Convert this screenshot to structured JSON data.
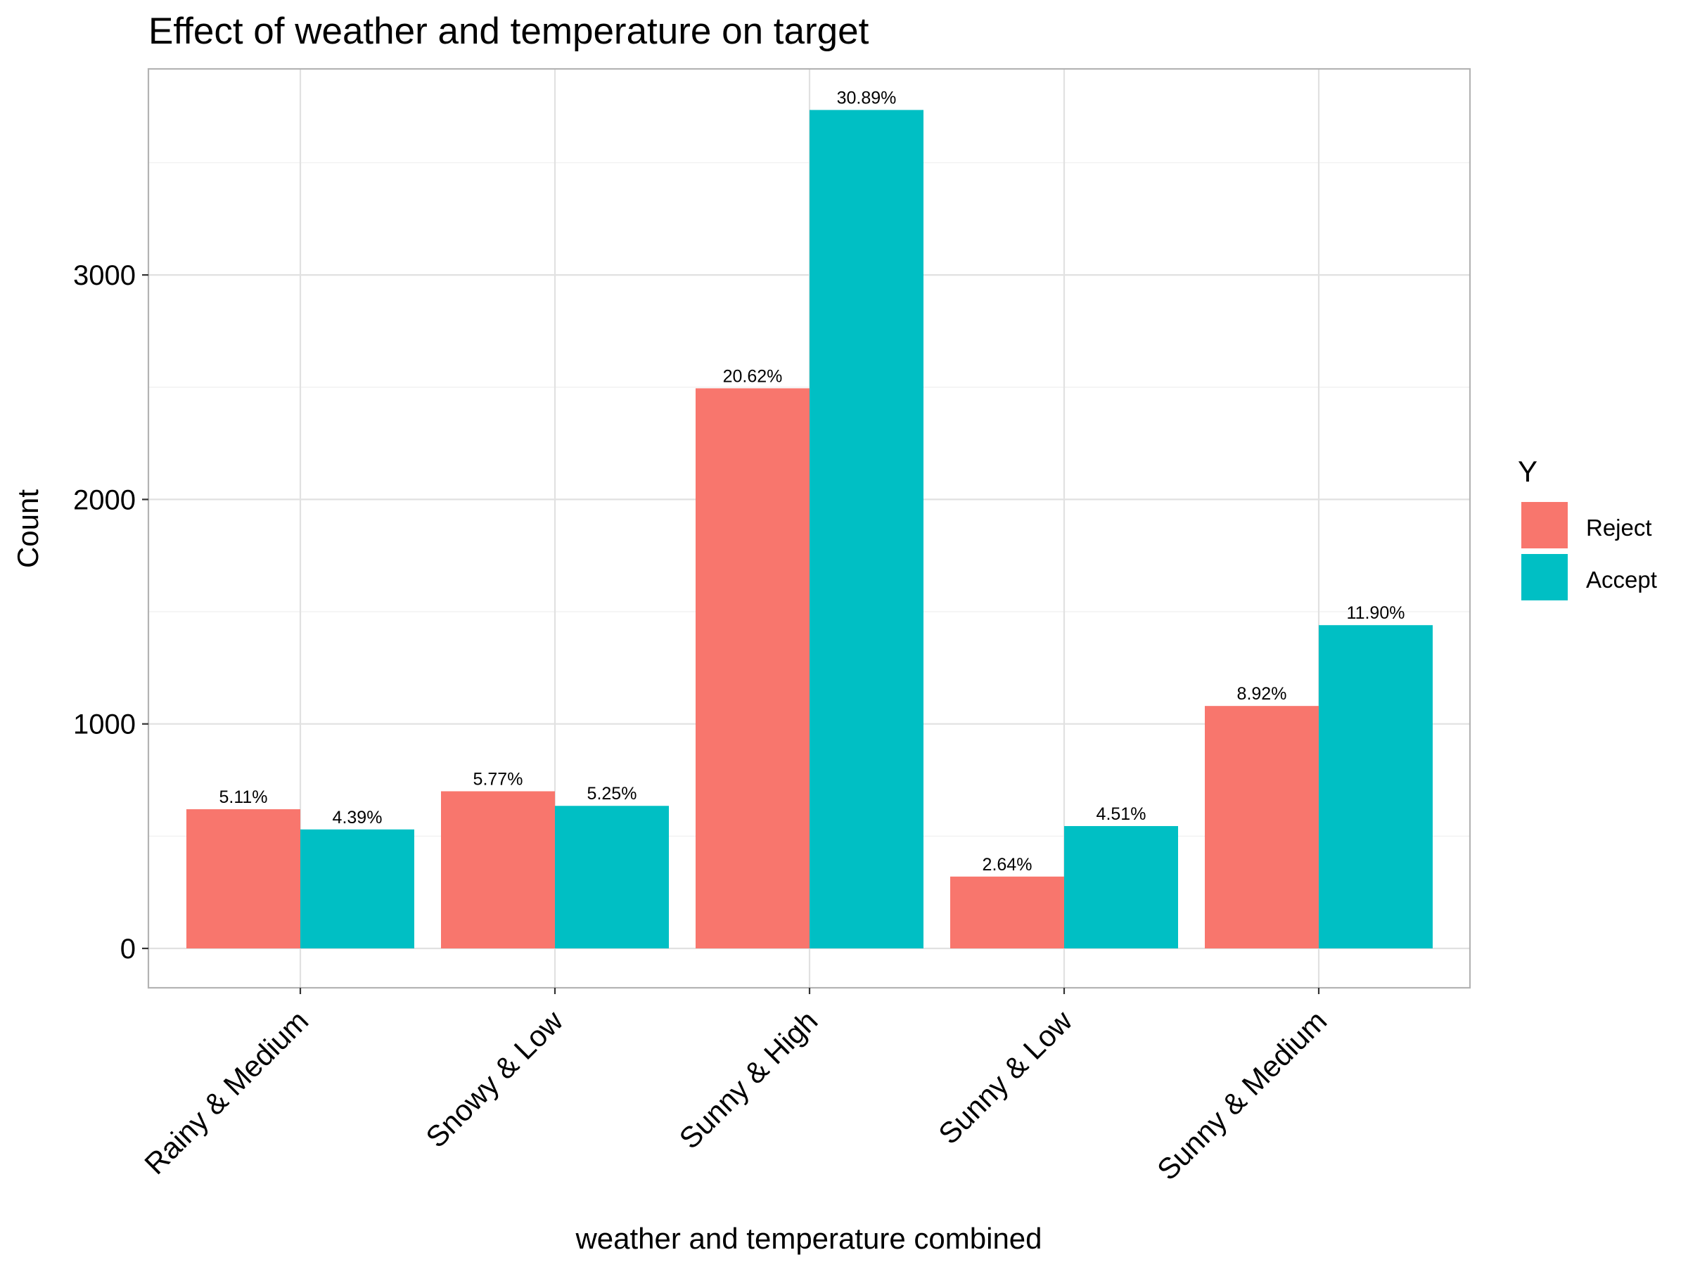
{
  "chart_data": {
    "type": "bar",
    "title": "Effect of weather and temperature on target",
    "xlabel": "weather and temperature combined",
    "ylabel": "Count",
    "ylim": [
      -180,
      3900
    ],
    "yticks": [
      0,
      1000,
      2000,
      3000
    ],
    "grid": true,
    "legend_position": "right",
    "legend_title": "Y",
    "categories": [
      "Rainy & Medium",
      "Snowy & Low",
      "Sunny & High",
      "Sunny & Low",
      "Sunny & Medium"
    ],
    "series": [
      {
        "name": "Reject",
        "color": "#F8766D",
        "values": [
          620,
          700,
          2495,
          320,
          1080
        ],
        "labels": [
          "5.11%",
          "5.77%",
          "20.62%",
          "2.64%",
          "8.92%"
        ]
      },
      {
        "name": "Accept",
        "color": "#00BFC4",
        "values": [
          530,
          635,
          3735,
          545,
          1440
        ],
        "labels": [
          "4.39%",
          "5.25%",
          "30.89%",
          "4.51%",
          "11.90%"
        ]
      }
    ]
  }
}
